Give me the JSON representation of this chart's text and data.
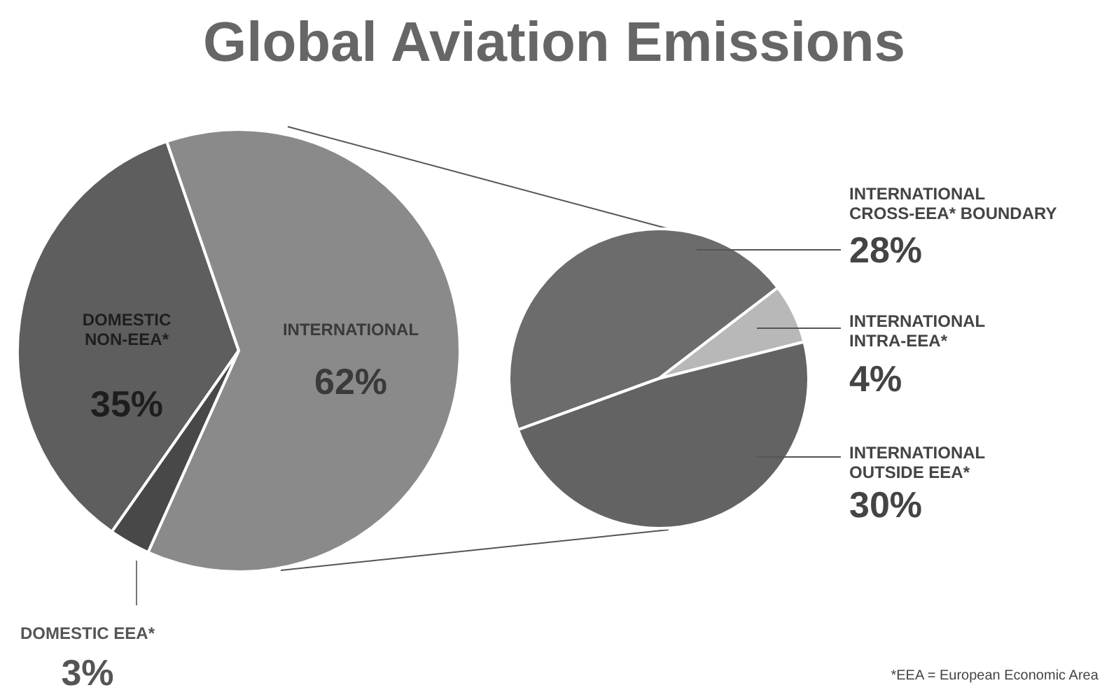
{
  "chart_data": [
    {
      "type": "pie",
      "title": "Global Aviation Emissions",
      "categories": [
        "DOMESTIC\nNON-EEA*",
        "INTERNATIONAL",
        "DOMESTIC EEA*"
      ],
      "values": [
        35,
        62,
        3
      ],
      "value_labels": [
        "35%",
        "62%",
        "3%"
      ],
      "colors": [
        "#5e5e5e",
        "#8a8a8a",
        "#484848"
      ]
    },
    {
      "type": "pie",
      "categories": [
        "INTERNATIONAL\nCROSS-EEA* BOUNDARY",
        "INTERNATIONAL\nINTRA-EEA*",
        "INTERNATIONAL\nOUTSIDE EEA*"
      ],
      "values": [
        28,
        4,
        30
      ],
      "value_labels": [
        "28%",
        "4%",
        "30%"
      ],
      "colors": [
        "#6c6c6c",
        "#b8b8b8",
        "#636363"
      ],
      "annotations": [
        "*EEA = European Economic Area"
      ]
    }
  ]
}
